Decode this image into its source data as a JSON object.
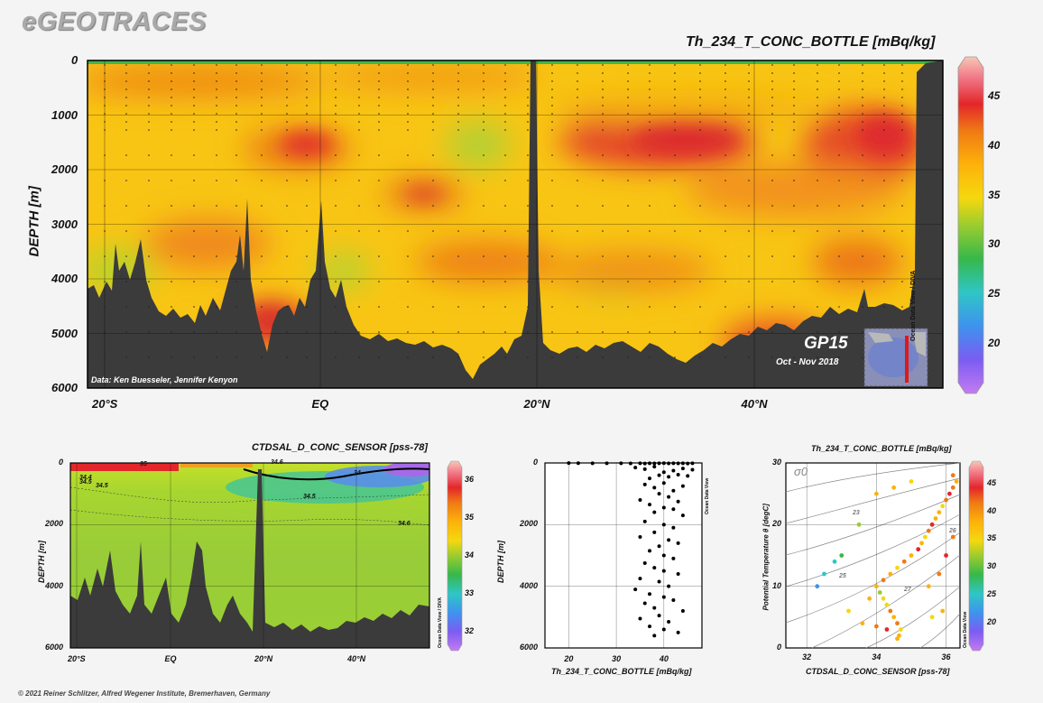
{
  "app": {
    "logo": "eGEOTRACES",
    "copyright": "© 2021 Reiner Schlitzer, Alfred Wegener Institute, Bremerhaven, Germany"
  },
  "colors": {
    "background": "#f4f4f4",
    "bathymetry": "#3b3b3b",
    "colorbar": [
      "#c37bf0",
      "#7b5cf2",
      "#3e93ee",
      "#2fc6c6",
      "#36b84a",
      "#9ccc2f",
      "#f5d80f",
      "#fdb20a",
      "#f07a14",
      "#e3262a",
      "#f27a8a",
      "#f8c7b4"
    ]
  },
  "chart_data": [
    {
      "type": "heatmap",
      "title": "Th_234_T_CONC_BOTTLE [mBq/kg]",
      "ylabel": "DEPTH [m]",
      "ylim": [
        6000,
        0
      ],
      "yticks": [
        "0",
        "1000",
        "2000",
        "3000",
        "4000",
        "5000",
        "6000"
      ],
      "xticks": [
        "20°S",
        "EQ",
        "20°N",
        "40°N"
      ],
      "colorbar": {
        "ticks": [
          "20",
          "25",
          "30",
          "35",
          "40",
          "45"
        ],
        "range": [
          15,
          49
        ]
      },
      "cruise": "GP15",
      "dates": "Oct - Nov 2018",
      "credit": "Data: Ken Buesseler, Jennifer Kenyon",
      "watermark": "Ocean Data View / DIVA"
    },
    {
      "type": "heatmap",
      "title": "CTDSAL_D_CONC_SENSOR [pss-78]",
      "ylabel": "DEPTH [m]",
      "ylim": [
        6000,
        0
      ],
      "yticks": [
        "0",
        "2000",
        "4000",
        "6000"
      ],
      "xticks": [
        "20°S",
        "EQ",
        "20°N",
        "40°N"
      ],
      "contour_labels": [
        "35",
        "34.5",
        "34.4",
        "34.5",
        "34",
        "34.6",
        "34.5",
        "34.6"
      ],
      "colorbar": {
        "ticks": [
          "36",
          "35",
          "34",
          "33",
          "32"
        ],
        "range": [
          31.5,
          36.5
        ]
      },
      "watermark": "Ocean Data View / DIVA"
    },
    {
      "type": "scatter",
      "xlabel": "Th_234_T_CONC_BOTTLE [mBq/kg]",
      "ylabel": "DEPTH [m]",
      "xlim": [
        15,
        48
      ],
      "ylim": [
        6000,
        0
      ],
      "xticks": [
        "20",
        "30",
        "40"
      ],
      "yticks": [
        "0",
        "2000",
        "4000",
        "6000"
      ],
      "watermark": "Ocean Data View",
      "points": [
        [
          20,
          5
        ],
        [
          22,
          8
        ],
        [
          25,
          10
        ],
        [
          28,
          12
        ],
        [
          31,
          10
        ],
        [
          33,
          15
        ],
        [
          35,
          10
        ],
        [
          36,
          20
        ],
        [
          37,
          12
        ],
        [
          38,
          15
        ],
        [
          39,
          10
        ],
        [
          40,
          8
        ],
        [
          41,
          14
        ],
        [
          42,
          10
        ],
        [
          43,
          16
        ],
        [
          44,
          12
        ],
        [
          45,
          18
        ],
        [
          46,
          10
        ],
        [
          34,
          150
        ],
        [
          36,
          200
        ],
        [
          38,
          120
        ],
        [
          40,
          300
        ],
        [
          42,
          250
        ],
        [
          44,
          180
        ],
        [
          46,
          220
        ],
        [
          39,
          400
        ],
        [
          41,
          450
        ],
        [
          43,
          380
        ],
        [
          37,
          500
        ],
        [
          45,
          420
        ],
        [
          36,
          700
        ],
        [
          38,
          800
        ],
        [
          40,
          650
        ],
        [
          42,
          900
        ],
        [
          44,
          750
        ],
        [
          39,
          1000
        ],
        [
          41,
          1100
        ],
        [
          35,
          1200
        ],
        [
          43,
          1250
        ],
        [
          37,
          1350
        ],
        [
          40,
          1450
        ],
        [
          42,
          1500
        ],
        [
          38,
          1600
        ],
        [
          44,
          1700
        ],
        [
          36,
          1900
        ],
        [
          40,
          2000
        ],
        [
          42,
          2100
        ],
        [
          38,
          2250
        ],
        [
          35,
          2400
        ],
        [
          41,
          2500
        ],
        [
          43,
          2600
        ],
        [
          39,
          2700
        ],
        [
          37,
          2850
        ],
        [
          40,
          3000
        ],
        [
          42,
          3100
        ],
        [
          36,
          3250
        ],
        [
          38,
          3400
        ],
        [
          40,
          3500
        ],
        [
          43,
          3600
        ],
        [
          35,
          3750
        ],
        [
          39,
          3850
        ],
        [
          41,
          4000
        ],
        [
          34,
          4100
        ],
        [
          37,
          4250
        ],
        [
          40,
          4350
        ],
        [
          42,
          4450
        ],
        [
          36,
          4550
        ],
        [
          38,
          4700
        ],
        [
          44,
          4800
        ],
        [
          39,
          4950
        ],
        [
          35,
          5050
        ],
        [
          41,
          5150
        ],
        [
          37,
          5300
        ],
        [
          40,
          5400
        ],
        [
          43,
          5500
        ],
        [
          38,
          5600
        ]
      ]
    },
    {
      "type": "scatter",
      "title": "Th_234_T_CONC_BOTTLE [mBq/kg]",
      "xlabel": "CTDSAL_D_CONC_SENSOR [pss-78]",
      "ylabel": "Potential Temperature θ [degC]",
      "xlim": [
        31.4,
        36.4
      ],
      "ylim": [
        0,
        30
      ],
      "xticks": [
        "32",
        "34",
        "36"
      ],
      "yticks": [
        "0",
        "10",
        "20",
        "30"
      ],
      "isopycnal_symbol": "σ0",
      "isopycnal_labels": [
        "23",
        "25",
        "26",
        "27"
      ],
      "colorbar": {
        "ticks": [
          "45",
          "40",
          "35",
          "30",
          "25",
          "20"
        ],
        "range": [
          15,
          49
        ]
      },
      "watermark": "Ocean Data View",
      "points": [
        [
          34.6,
          1.5,
          38
        ],
        [
          34.65,
          2,
          40
        ],
        [
          34.7,
          3,
          36
        ],
        [
          34.6,
          4,
          42
        ],
        [
          34.5,
          5,
          39
        ],
        [
          34.4,
          6,
          41
        ],
        [
          34.3,
          7,
          37
        ],
        [
          34.2,
          8,
          35
        ],
        [
          34.1,
          9,
          33
        ],
        [
          34.0,
          10,
          40
        ],
        [
          34.2,
          11,
          43
        ],
        [
          34.4,
          12,
          38
        ],
        [
          34.6,
          13,
          36
        ],
        [
          34.8,
          14,
          42
        ],
        [
          35.0,
          15,
          40
        ],
        [
          35.2,
          16,
          44
        ],
        [
          35.3,
          17,
          39
        ],
        [
          35.4,
          18,
          37
        ],
        [
          35.5,
          19,
          41
        ],
        [
          35.6,
          20,
          45
        ],
        [
          35.7,
          21,
          38
        ],
        [
          35.8,
          22,
          40
        ],
        [
          35.9,
          23,
          36
        ],
        [
          36.0,
          24,
          42
        ],
        [
          36.1,
          25,
          44
        ],
        [
          36.2,
          26,
          41
        ],
        [
          36.3,
          27,
          39
        ],
        [
          36.2,
          28,
          43
        ],
        [
          34.0,
          25,
          40
        ],
        [
          34.5,
          26,
          38
        ],
        [
          35.0,
          27,
          36
        ],
        [
          33.5,
          20,
          34
        ],
        [
          33.0,
          15,
          30
        ],
        [
          32.5,
          12,
          26
        ],
        [
          32.3,
          10,
          22
        ],
        [
          32.8,
          14,
          28
        ],
        [
          33.2,
          6,
          36
        ],
        [
          33.6,
          4,
          39
        ],
        [
          34.0,
          3.5,
          42
        ],
        [
          34.3,
          3,
          44
        ],
        [
          33.8,
          8,
          38
        ],
        [
          35.5,
          10,
          40
        ],
        [
          35.8,
          12,
          42
        ],
        [
          36.0,
          15,
          44
        ],
        [
          36.2,
          18,
          41
        ],
        [
          35.9,
          6,
          39
        ],
        [
          35.6,
          5,
          37
        ]
      ]
    }
  ]
}
